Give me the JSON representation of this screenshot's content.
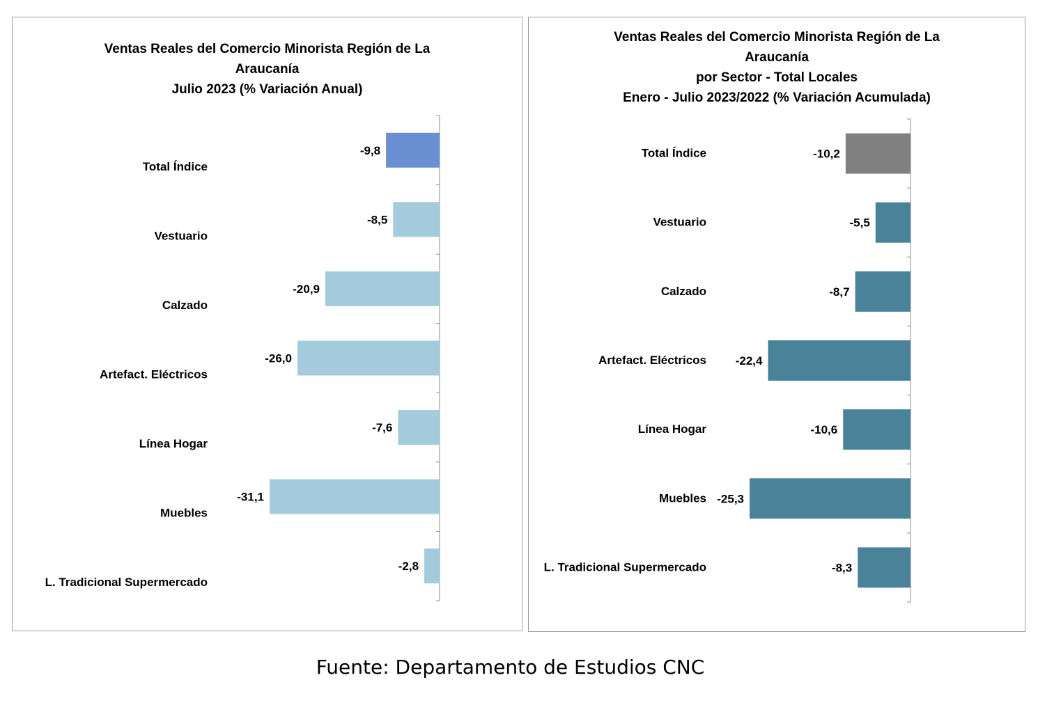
{
  "chart_data": [
    {
      "type": "bar",
      "orientation": "horizontal",
      "title_lines": [
        "Ventas Reales del Comercio Minorista  Región de La",
        "Araucanía",
        "Julio 2023 (% Variación Anual)"
      ],
      "categories": [
        "Total Índice",
        "Vestuario",
        "Calzado",
        "Artefact. Eléctricos",
        "Línea Hogar",
        "Muebles",
        "L. Tradicional Supermercado"
      ],
      "values": [
        -9.8,
        -8.5,
        -20.9,
        -26.0,
        -7.6,
        -31.1,
        -2.8
      ],
      "value_labels": [
        "-9,8",
        "-8,5",
        "-20,9",
        "-26,0",
        "-7,6",
        "-31,1",
        "-2,8"
      ],
      "colors": [
        "#6a8fd0",
        "#a4cbdc",
        "#a4cbdc",
        "#a4cbdc",
        "#a4cbdc",
        "#a4cbdc",
        "#a4cbdc"
      ],
      "xlim": [
        -31.1,
        0
      ],
      "grid": false,
      "legend": "none"
    },
    {
      "type": "bar",
      "orientation": "horizontal",
      "title_lines": [
        "Ventas Reales del Comercio Minorista Región de La",
        "Araucanía",
        "por Sector - Total Locales",
        "Enero - Julio 2023/2022 (% Variación Acumulada)"
      ],
      "categories": [
        "Total Índice",
        "Vestuario",
        "Calzado",
        "Artefact. Eléctricos",
        "Línea Hogar",
        "Muebles",
        "L. Tradicional Supermercado"
      ],
      "values": [
        -10.2,
        -5.5,
        -8.7,
        -22.4,
        -10.6,
        -25.3,
        -8.3
      ],
      "value_labels": [
        "-10,2",
        "-5,5",
        "-8,7",
        "-22,4",
        "-10,6",
        "-25,3",
        "-8,3"
      ],
      "colors": [
        "#808080",
        "#4a8399",
        "#4a8399",
        "#4a8399",
        "#4a8399",
        "#4a8399",
        "#4a8399"
      ],
      "xlim": [
        -25.3,
        0
      ],
      "grid": false,
      "legend": "none"
    }
  ],
  "source_note": "Fuente: Departamento de Estudios CNC"
}
